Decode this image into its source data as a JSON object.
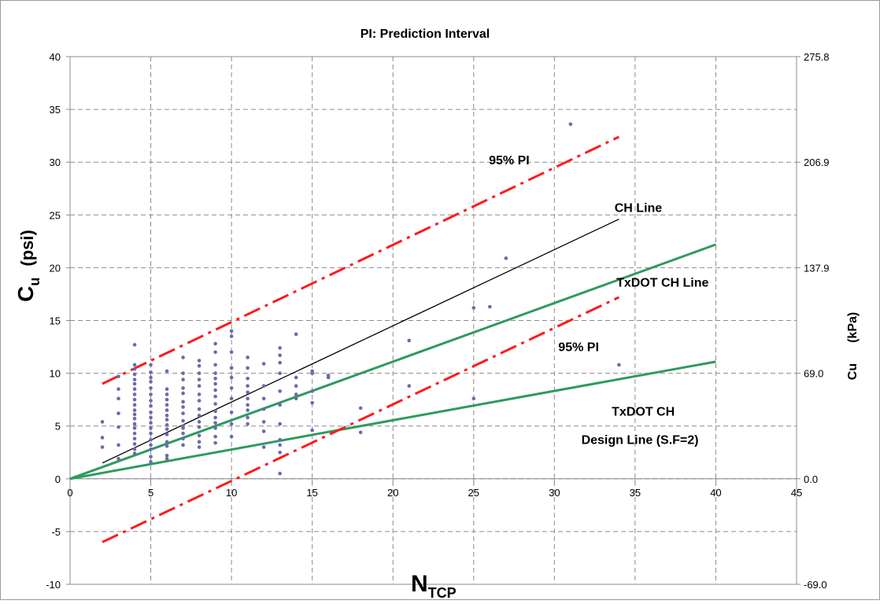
{
  "chart_data": {
    "type": "scatter",
    "title": "PI: Prediction Interval",
    "xlabel": "N",
    "xlabel_sub": "TCP",
    "ylabel": "C",
    "ylabel_sub": "u",
    "ylabel_unit": "(psi)",
    "y2label": "Cu",
    "y2label_unit": "(kPa)",
    "xlim": [
      0,
      45
    ],
    "ylim": [
      -10,
      40
    ],
    "x_ticks": [
      "0",
      "5",
      "10",
      "15",
      "20",
      "25",
      "30",
      "35",
      "40",
      "45"
    ],
    "y_ticks": [
      "-10",
      "-5",
      "0",
      "5",
      "10",
      "15",
      "20",
      "25",
      "30",
      "35",
      "40"
    ],
    "y2_ticks": [
      {
        "y": -10,
        "label": "-69.0"
      },
      {
        "y": 0,
        "label": "0.0"
      },
      {
        "y": 10,
        "label": "69.0"
      },
      {
        "y": 20,
        "label": "137.9"
      },
      {
        "y": 30,
        "label": "206.9"
      },
      {
        "y": 40,
        "label": "275.8"
      }
    ],
    "grid": true,
    "colors": {
      "points": "#6b6ba8",
      "ch_line": "#000000",
      "txdot": "#2e9a5e",
      "pi": "#ff1a1a",
      "grid": "#8c8c8c"
    },
    "lines": [
      {
        "name": "CH Line",
        "style": "solid-thin",
        "color": "#000000",
        "x": [
          2,
          34
        ],
        "y": [
          1.5,
          24.6
        ]
      },
      {
        "name": "TxDOT  CH Line",
        "style": "solid-thick",
        "color": "#2e9a5e",
        "x": [
          0,
          40
        ],
        "y": [
          0,
          22.2
        ]
      },
      {
        "name": "TxDOT CH Design Line (S.F=2)",
        "style": "solid-thick",
        "color": "#2e9a5e",
        "x": [
          0,
          40
        ],
        "y": [
          0,
          11.1
        ]
      },
      {
        "name": "95% PI",
        "style": "dash-dot",
        "color": "#ff1a1a",
        "x": [
          2,
          34
        ],
        "y": [
          9,
          32.4
        ]
      },
      {
        "name": "95% PI",
        "style": "dash-dot",
        "color": "#ff1a1a",
        "x": [
          2,
          34
        ],
        "y": [
          -6,
          17.2
        ]
      }
    ],
    "annotations": [
      {
        "text": "95% PI",
        "x": 27.2,
        "y": 29.8
      },
      {
        "text": "CH Line",
        "x": 35.2,
        "y": 25.3
      },
      {
        "text": "TxDOT  CH Line",
        "x": 36.7,
        "y": 18.2
      },
      {
        "text": "95% PI",
        "x": 31.5,
        "y": 12.1
      },
      {
        "text": "TxDOT CH",
        "x": 35.5,
        "y": 6.0
      },
      {
        "text": "Design Line (S.F=2)",
        "x": 35.3,
        "y": 3.3
      }
    ],
    "points": [
      [
        2,
        3.0
      ],
      [
        2,
        3.9
      ],
      [
        2,
        5.4
      ],
      [
        3,
        1.9
      ],
      [
        3,
        3.2
      ],
      [
        3,
        4.9
      ],
      [
        3,
        6.2
      ],
      [
        3,
        7.6
      ],
      [
        3,
        8.5
      ],
      [
        3,
        9.7
      ],
      [
        4,
        2.4
      ],
      [
        4,
        2.8
      ],
      [
        4,
        3.3
      ],
      [
        4,
        3.8
      ],
      [
        4,
        4.3
      ],
      [
        4,
        4.8
      ],
      [
        4,
        5.2
      ],
      [
        4,
        5.7
      ],
      [
        4,
        6.1
      ],
      [
        4,
        6.5
      ],
      [
        4,
        7.0
      ],
      [
        4,
        7.5
      ],
      [
        4,
        8.0
      ],
      [
        4,
        8.5
      ],
      [
        4,
        9.0
      ],
      [
        4,
        9.4
      ],
      [
        4,
        9.9
      ],
      [
        4,
        10.4
      ],
      [
        4,
        10.8
      ],
      [
        4,
        12.7
      ],
      [
        5,
        1.6
      ],
      [
        5,
        2.1
      ],
      [
        5,
        2.8
      ],
      [
        5,
        3.2
      ],
      [
        5,
        3.7
      ],
      [
        5,
        4.3
      ],
      [
        5,
        4.8
      ],
      [
        5,
        5.3
      ],
      [
        5,
        5.8
      ],
      [
        5,
        6.3
      ],
      [
        5,
        6.9
      ],
      [
        5,
        7.4
      ],
      [
        5,
        8.0
      ],
      [
        5,
        8.6
      ],
      [
        5,
        9.2
      ],
      [
        5,
        9.6
      ],
      [
        5,
        10.1
      ],
      [
        5,
        10.8
      ],
      [
        6,
        1.9
      ],
      [
        6,
        2.2
      ],
      [
        6,
        3.1
      ],
      [
        6,
        3.5
      ],
      [
        6,
        4.2
      ],
      [
        6,
        4.7
      ],
      [
        6,
        5.1
      ],
      [
        6,
        5.6
      ],
      [
        6,
        6.0
      ],
      [
        6,
        6.5
      ],
      [
        6,
        7.0
      ],
      [
        6,
        7.5
      ],
      [
        6,
        8.0
      ],
      [
        6,
        8.5
      ],
      [
        6,
        10.2
      ],
      [
        7,
        3.2
      ],
      [
        7,
        3.8
      ],
      [
        7,
        4.3
      ],
      [
        7,
        4.8
      ],
      [
        7,
        5.0
      ],
      [
        7,
        5.5
      ],
      [
        7,
        6.2
      ],
      [
        7,
        6.8
      ],
      [
        7,
        7.3
      ],
      [
        7,
        8.1
      ],
      [
        7,
        8.6
      ],
      [
        7,
        9.4
      ],
      [
        7,
        10.0
      ],
      [
        7,
        11.5
      ],
      [
        8,
        3.0
      ],
      [
        8,
        3.5
      ],
      [
        8,
        4.1
      ],
      [
        8,
        4.9
      ],
      [
        8,
        5.4
      ],
      [
        8,
        6.0
      ],
      [
        8,
        6.6
      ],
      [
        8,
        7.4
      ],
      [
        8,
        8.0
      ],
      [
        8,
        8.8
      ],
      [
        8,
        9.4
      ],
      [
        8,
        10.0
      ],
      [
        8,
        10.7
      ],
      [
        8,
        11.2
      ],
      [
        9,
        3.4
      ],
      [
        9,
        4.0
      ],
      [
        9,
        4.8
      ],
      [
        9,
        5.3
      ],
      [
        9,
        5.8
      ],
      [
        9,
        6.4
      ],
      [
        9,
        7.1
      ],
      [
        9,
        7.8
      ],
      [
        9,
        8.4
      ],
      [
        9,
        9.0
      ],
      [
        9,
        9.5
      ],
      [
        9,
        10.0
      ],
      [
        9,
        10.8
      ],
      [
        9,
        12.0
      ],
      [
        9,
        12.8
      ],
      [
        10,
        4.0
      ],
      [
        10,
        5.2
      ],
      [
        10,
        6.3
      ],
      [
        10,
        7.6
      ],
      [
        10,
        8.6
      ],
      [
        10,
        9.6
      ],
      [
        10,
        10.5
      ],
      [
        10,
        12.0
      ],
      [
        10,
        13.5
      ],
      [
        10,
        14.0
      ],
      [
        11,
        5.2
      ],
      [
        11,
        5.8
      ],
      [
        11,
        6.5
      ],
      [
        11,
        7.0
      ],
      [
        11,
        7.6
      ],
      [
        11,
        8.2
      ],
      [
        11,
        8.8
      ],
      [
        11,
        9.5
      ],
      [
        11,
        10.5
      ],
      [
        11,
        11.5
      ],
      [
        12,
        3.0
      ],
      [
        12,
        4.5
      ],
      [
        12,
        5.4
      ],
      [
        12,
        6.6
      ],
      [
        12,
        7.6
      ],
      [
        12,
        8.8
      ],
      [
        12,
        10.9
      ],
      [
        13,
        0.5
      ],
      [
        13,
        2.5
      ],
      [
        13,
        3.2
      ],
      [
        13,
        3.7
      ],
      [
        13,
        5.2
      ],
      [
        13,
        7.0
      ],
      [
        13,
        8.3
      ],
      [
        13,
        10.0
      ],
      [
        13,
        11.0
      ],
      [
        13,
        11.7
      ],
      [
        13,
        12.4
      ],
      [
        14,
        7.6
      ],
      [
        14,
        8.0
      ],
      [
        14,
        8.8
      ],
      [
        14,
        9.6
      ],
      [
        14,
        13.7
      ],
      [
        15,
        4.6
      ],
      [
        15,
        7.2
      ],
      [
        15,
        8.3
      ],
      [
        15,
        10.0
      ],
      [
        15,
        10.2
      ],
      [
        16,
        9.6
      ],
      [
        16,
        9.8
      ],
      [
        18,
        4.4
      ],
      [
        18,
        6.7
      ],
      [
        21,
        8.8
      ],
      [
        21,
        13.1
      ],
      [
        25,
        7.6
      ],
      [
        25,
        16.2
      ],
      [
        26,
        16.3
      ],
      [
        27,
        20.9
      ],
      [
        31,
        33.6
      ],
      [
        34,
        10.8
      ]
    ]
  }
}
